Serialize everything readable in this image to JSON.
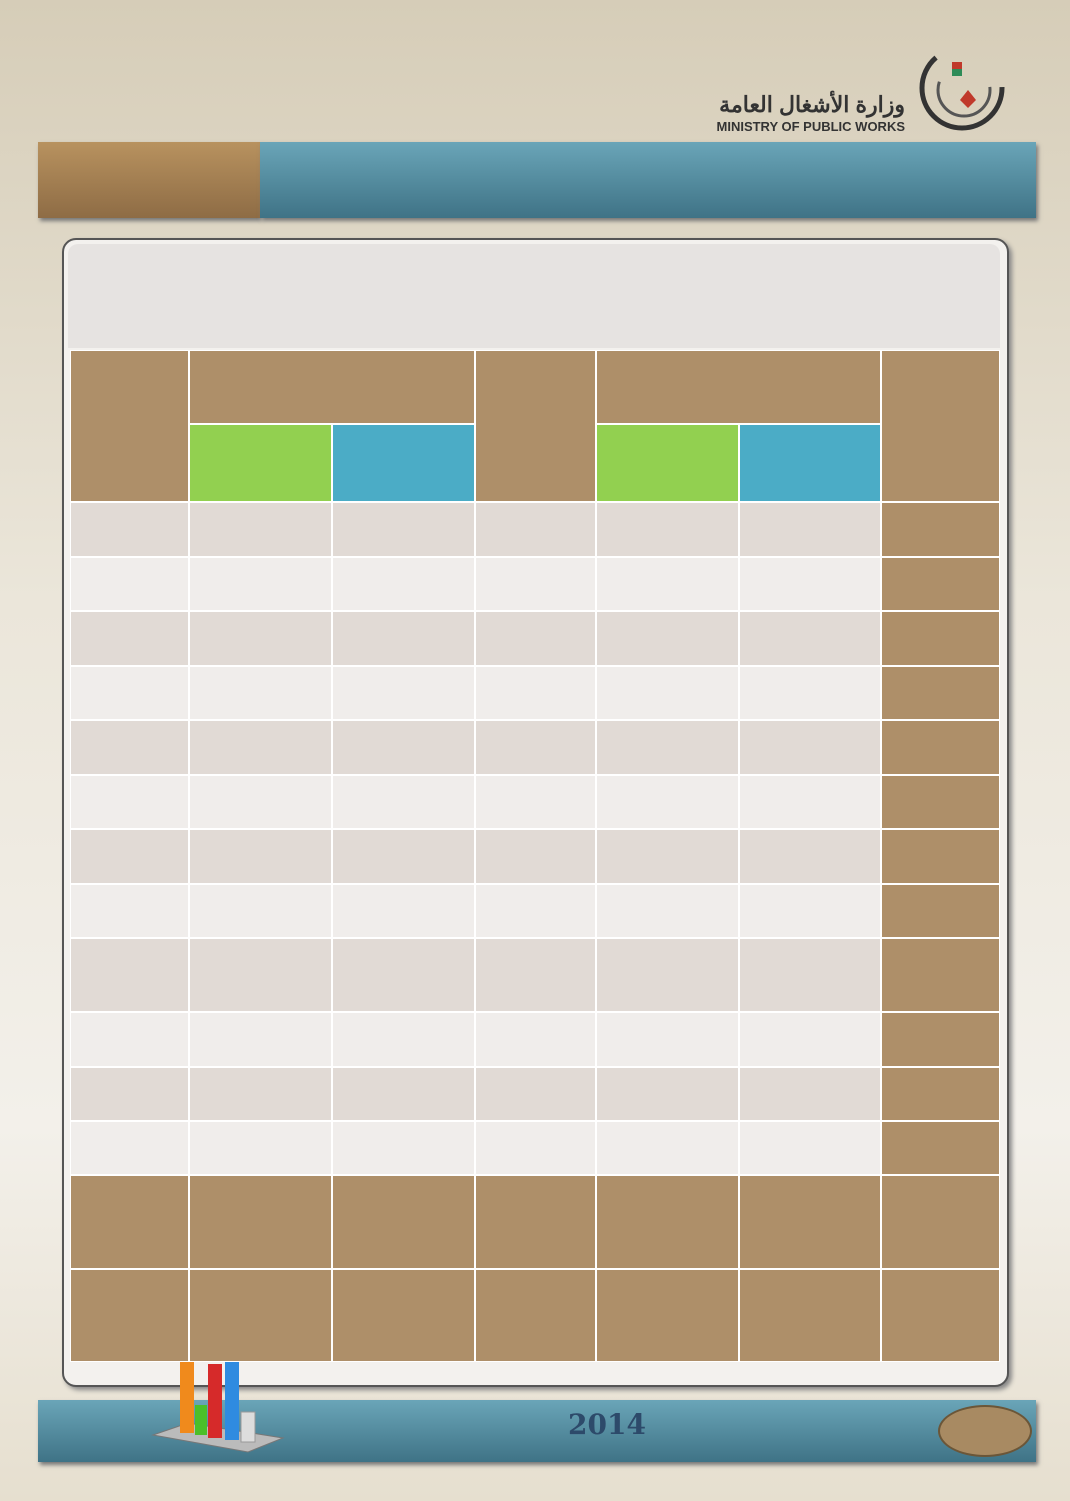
{
  "header": {
    "title_ar": "وزارة الأشغال العامة",
    "title_en": "MINISTRY OF PUBLIC WORKS"
  },
  "footer": {
    "year": "2014"
  }
}
